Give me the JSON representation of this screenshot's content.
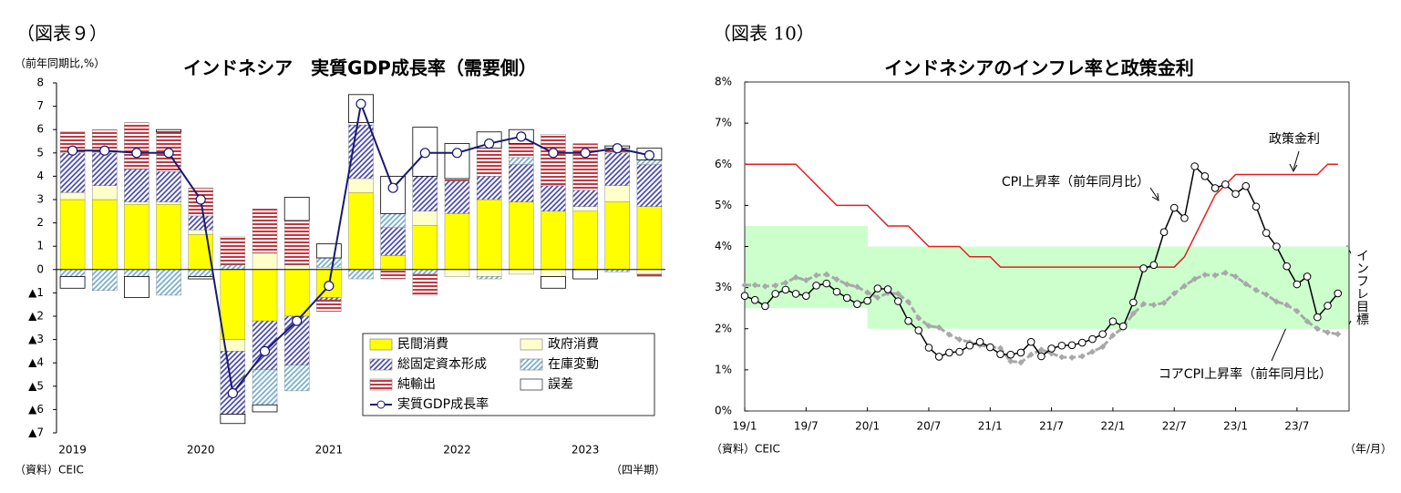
{
  "chart_data": [
    {
      "type": "stacked_bar",
      "figure_label": "（図表９）",
      "title": "インドネシア　実質GDP成長率（需要側）",
      "y_label": "（前年同期比,%）",
      "x_label": "（四半期）",
      "source": "（資料）CEIC",
      "categories": [
        "2019",
        null,
        null,
        null,
        "2020",
        null,
        null,
        null,
        "2021",
        null,
        null,
        null,
        "2022",
        null,
        null,
        null,
        "2023",
        null,
        null
      ],
      "ylim": [
        -7,
        8
      ],
      "yticks": [
        {
          "value": -7,
          "label": "▲7"
        },
        {
          "value": -6,
          "label": "▲6"
        },
        {
          "value": -5,
          "label": "▲5"
        },
        {
          "value": -4,
          "label": "▲4"
        },
        {
          "value": -3,
          "label": "▲3"
        },
        {
          "value": -2,
          "label": "▲2"
        },
        {
          "value": -1,
          "label": "▲1"
        },
        0,
        1,
        2,
        3,
        4,
        5,
        6,
        7,
        8
      ],
      "legend": "lower right",
      "series": [
        {
          "name": "民間消費",
          "color": "#ffff00",
          "pattern": "solid",
          "values": [
            3.0,
            3.0,
            2.8,
            2.8,
            1.5,
            -3.0,
            -2.2,
            -2.0,
            -1.2,
            3.3,
            0.6,
            1.9,
            2.4,
            3.0,
            2.9,
            2.5,
            2.5,
            2.9,
            2.7
          ]
        },
        {
          "name": "政府消費",
          "color": "#ffffcc",
          "pattern": "solid",
          "values": [
            0.3,
            0.6,
            0.1,
            0.1,
            0.2,
            -0.5,
            0.7,
            0.2,
            0.1,
            0.6,
            0.0,
            0.6,
            -0.3,
            -0.3,
            -0.2,
            -0.3,
            0.2,
            0.7,
            -0.2
          ]
        },
        {
          "name": "総固定資本形成",
          "color": "#3a3aa8",
          "pattern": "diagonal",
          "values": [
            1.7,
            1.4,
            1.4,
            1.3,
            0.6,
            -2.7,
            -2.1,
            -2.1,
            -0.1,
            2.3,
            1.2,
            1.5,
            1.4,
            1.0,
            1.6,
            1.1,
            0.7,
            1.4,
            1.8
          ]
        },
        {
          "name": "在庫変動",
          "color": "#6aa6c8",
          "pattern": "diagonal",
          "values": [
            -0.3,
            -0.9,
            -0.3,
            -1.1,
            -0.3,
            0.2,
            -1.5,
            -1.1,
            0.4,
            -0.4,
            0.6,
            -0.2,
            0.0,
            -0.1,
            0.3,
            0.0,
            0.0,
            -0.1,
            0.2
          ]
        },
        {
          "name": "純輸出",
          "color": "#c0202a",
          "pattern": "horizontal",
          "values": [
            0.9,
            1.0,
            2.0,
            1.7,
            1.2,
            1.2,
            1.9,
            1.9,
            -0.5,
            0.1,
            -0.4,
            -0.9,
            0.1,
            1.2,
            0.6,
            2.2,
            2.0,
            0.2,
            -0.1
          ]
        },
        {
          "name": "誤差",
          "color": "#ffffff",
          "pattern": "outline",
          "values": [
            -0.5,
            0.0,
            -0.9,
            0.1,
            -0.1,
            -0.4,
            -0.3,
            1.0,
            0.6,
            1.2,
            1.6,
            2.1,
            1.5,
            0.7,
            0.6,
            -0.5,
            -0.4,
            0.1,
            0.5
          ]
        },
        {
          "name": "実質GDP成長率",
          "color": "#1a1a70",
          "type": "line",
          "values": [
            5.1,
            5.1,
            5.0,
            5.0,
            3.0,
            -5.3,
            -3.5,
            -2.2,
            -0.7,
            7.1,
            3.5,
            5.0,
            5.0,
            5.4,
            5.7,
            5.0,
            5.0,
            5.2,
            4.9
          ]
        }
      ]
    },
    {
      "type": "line",
      "figure_label": "（図表 10）",
      "title": "インドネシアのインフレ率と政策金利",
      "x_label": "（年/月）",
      "source": "（資料）CEIC",
      "categories": [
        "19/1",
        null,
        null,
        null,
        null,
        null,
        "19/7",
        null,
        null,
        null,
        null,
        null,
        "20/1",
        null,
        null,
        null,
        null,
        null,
        "20/7",
        null,
        null,
        null,
        null,
        null,
        "21/1",
        null,
        null,
        null,
        null,
        null,
        "21/7",
        null,
        null,
        null,
        null,
        null,
        "22/1",
        null,
        null,
        null,
        null,
        null,
        "22/7",
        null,
        null,
        null,
        null,
        null,
        "23/1",
        null,
        null,
        null,
        null,
        null,
        "23/7",
        null,
        null,
        null,
        null
      ],
      "ylim": [
        0,
        8
      ],
      "yticks": [
        {
          "value": 0,
          "label": "0%"
        },
        {
          "value": 1,
          "label": "1%"
        },
        {
          "value": 2,
          "label": "2%"
        },
        {
          "value": 3,
          "label": "3%"
        },
        {
          "value": 4,
          "label": "4%"
        },
        {
          "value": 5,
          "label": "5%"
        },
        {
          "value": 6,
          "label": "6%"
        },
        {
          "value": 7,
          "label": "7%"
        },
        {
          "value": 8,
          "label": "8%"
        }
      ],
      "target_band": {
        "label": "インフレ目標",
        "color": "#ccffcc",
        "lower": [
          2.5,
          2.5,
          2.5,
          2.5,
          2.5,
          2.5,
          2.5,
          2.5,
          2.5,
          2.5,
          2.5,
          2.5,
          2,
          2,
          2,
          2,
          2,
          2,
          2,
          2,
          2,
          2,
          2,
          2,
          2,
          2,
          2,
          2,
          2,
          2,
          2,
          2,
          2,
          2,
          2,
          2,
          2,
          2,
          2,
          2,
          2,
          2,
          2,
          2,
          2,
          2,
          2,
          2,
          2,
          2,
          2,
          2,
          2,
          2,
          2,
          2,
          2,
          2,
          2
        ],
        "upper": [
          4.5,
          4.5,
          4.5,
          4.5,
          4.5,
          4.5,
          4.5,
          4.5,
          4.5,
          4.5,
          4.5,
          4.5,
          4,
          4,
          4,
          4,
          4,
          4,
          4,
          4,
          4,
          4,
          4,
          4,
          4,
          4,
          4,
          4,
          4,
          4,
          4,
          4,
          4,
          4,
          4,
          4,
          4,
          4,
          4,
          4,
          4,
          4,
          4,
          4,
          4,
          4,
          4,
          4,
          4,
          4,
          4,
          4,
          4,
          4,
          4,
          4,
          4,
          4,
          4
        ]
      },
      "annotations": [
        "政策金利",
        "CPI上昇率（前年同月比）",
        "コアCPI上昇率（前年同月比）"
      ],
      "series": [
        {
          "name": "政策金利",
          "color": "#e02020",
          "style": "solid",
          "values": [
            6,
            6,
            6,
            6,
            6,
            6,
            5.75,
            5.5,
            5.25,
            5,
            5,
            5,
            5,
            4.75,
            4.5,
            4.5,
            4.5,
            4.25,
            4,
            4,
            4,
            4,
            3.75,
            3.75,
            3.75,
            3.5,
            3.5,
            3.5,
            3.5,
            3.5,
            3.5,
            3.5,
            3.5,
            3.5,
            3.5,
            3.5,
            3.5,
            3.5,
            3.5,
            3.5,
            3.5,
            3.5,
            3.5,
            3.75,
            4.25,
            4.75,
            5.25,
            5.5,
            5.75,
            5.75,
            5.75,
            5.75,
            5.75,
            5.75,
            5.75,
            5.75,
            5.75,
            6,
            6
          ]
        },
        {
          "name": "CPI上昇率（前年同月比）",
          "color": "#000000",
          "style": "circle",
          "values": [
            2.8,
            2.7,
            2.55,
            2.85,
            2.95,
            2.85,
            2.8,
            3.05,
            3.1,
            2.9,
            2.75,
            2.6,
            2.68,
            2.98,
            2.96,
            2.67,
            2.19,
            1.96,
            1.54,
            1.32,
            1.42,
            1.44,
            1.59,
            1.68,
            1.55,
            1.38,
            1.37,
            1.42,
            1.68,
            1.33,
            1.52,
            1.59,
            1.6,
            1.66,
            1.75,
            1.87,
            2.18,
            2.06,
            2.64,
            3.47,
            3.55,
            4.35,
            4.94,
            4.69,
            5.95,
            5.71,
            5.42,
            5.51,
            5.28,
            5.47,
            4.97,
            4.33,
            4.0,
            3.52,
            3.08,
            3.27,
            2.28,
            2.56,
            2.86
          ]
        },
        {
          "name": "コアCPI上昇率（前年同月比）",
          "color": "#a8a8a8",
          "style": "dashed",
          "values": [
            3.06,
            3.06,
            3.03,
            3.05,
            3.12,
            3.25,
            3.18,
            3.3,
            3.32,
            3.2,
            3.08,
            3.02,
            2.88,
            2.76,
            2.87,
            2.85,
            2.65,
            2.26,
            2.07,
            2.03,
            1.86,
            1.74,
            1.67,
            1.6,
            1.56,
            1.53,
            1.21,
            1.18,
            1.37,
            1.49,
            1.4,
            1.31,
            1.3,
            1.33,
            1.44,
            1.56,
            1.84,
            2.03,
            2.37,
            2.6,
            2.58,
            2.63,
            2.86,
            3.04,
            3.21,
            3.31,
            3.3,
            3.36,
            3.27,
            3.09,
            2.94,
            2.83,
            2.66,
            2.58,
            2.43,
            2.18,
            2.0,
            1.91,
            1.87
          ]
        }
      ]
    }
  ]
}
